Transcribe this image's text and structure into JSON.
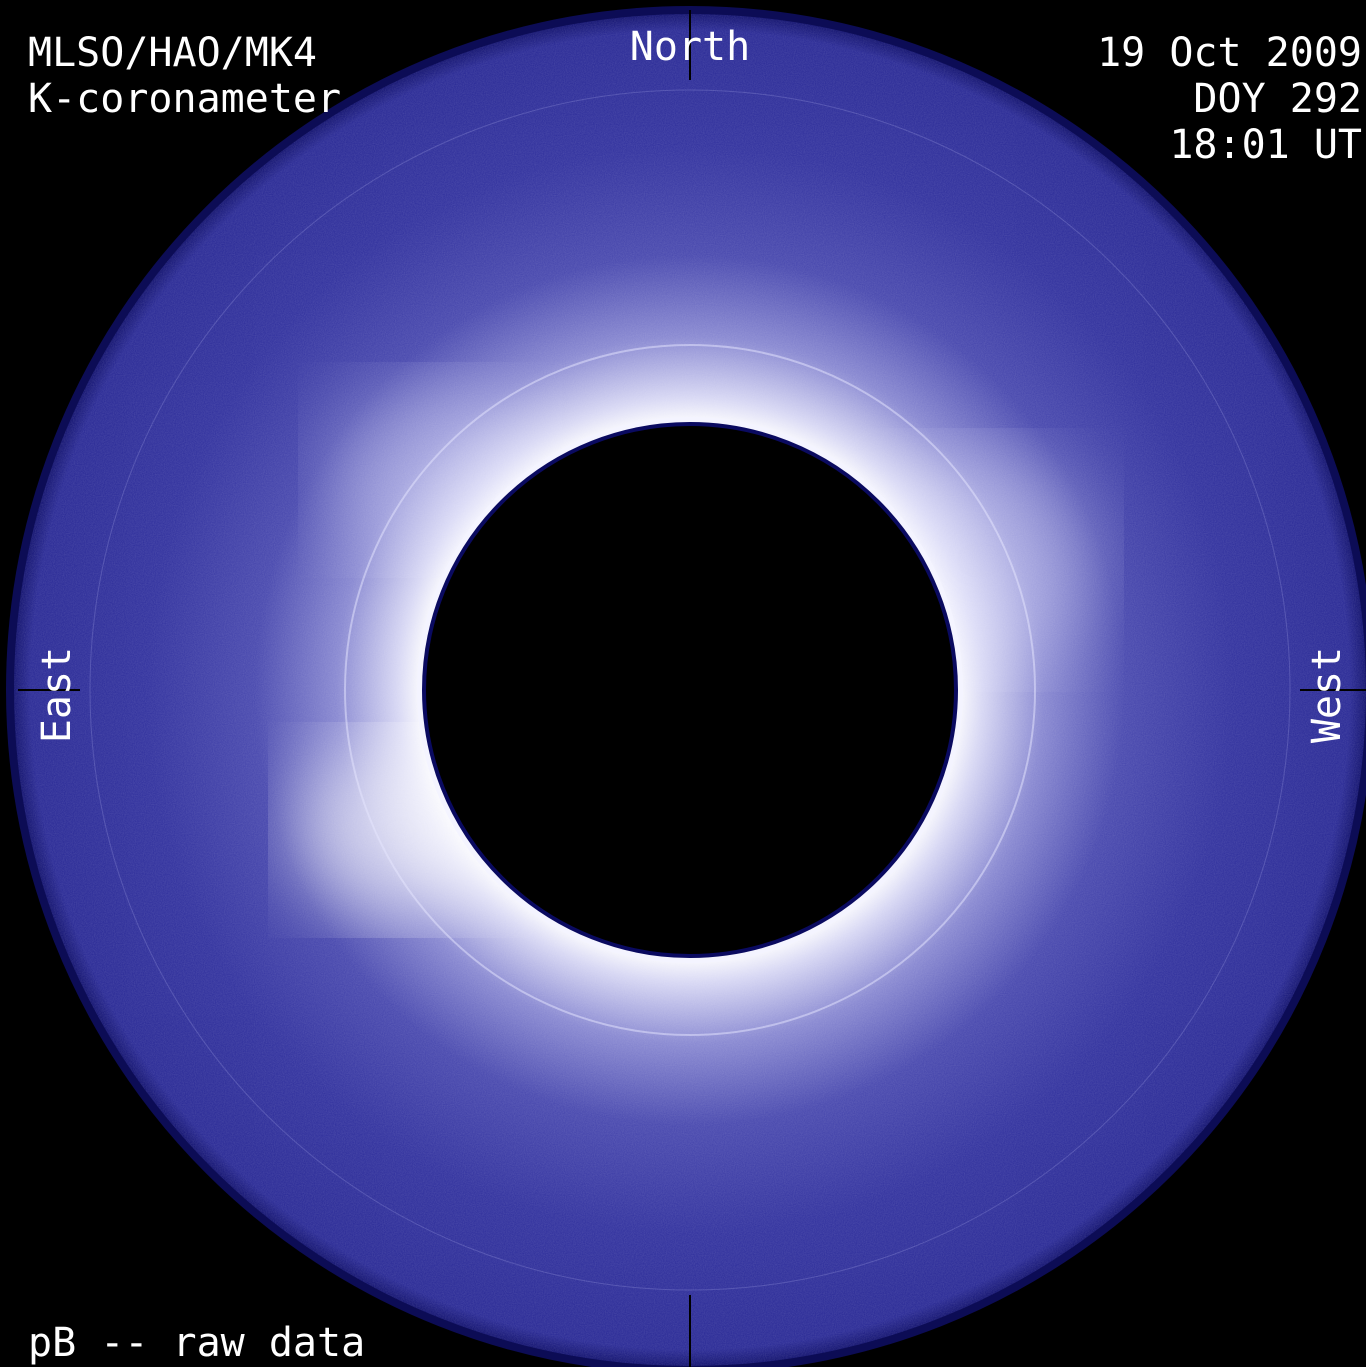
{
  "header": {
    "title": "MLSO/HAO/MK4",
    "subtitle": "K-coronameter"
  },
  "timestamp": {
    "date": "19 Oct 2009",
    "doy": "DOY 292",
    "time": "18:01 UT"
  },
  "directions": {
    "north": "North",
    "east": "East",
    "west": "West"
  },
  "footer": {
    "caption": "pB -- raw data"
  }
}
